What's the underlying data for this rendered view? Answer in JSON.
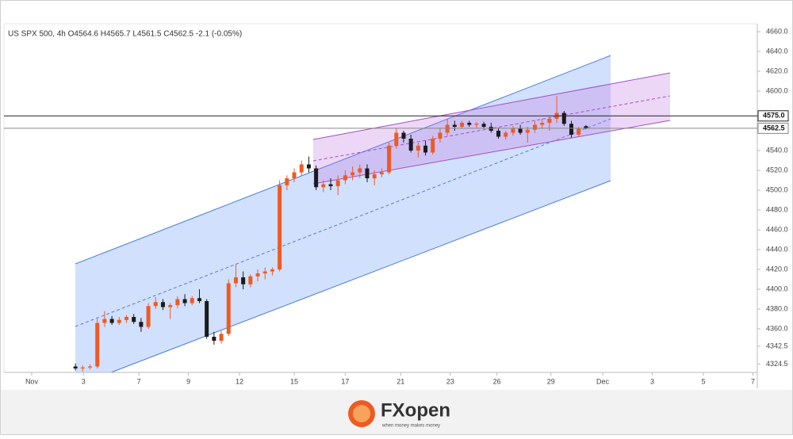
{
  "chart_data": {
    "type": "candlestick",
    "title": "US SPX 500, 4h  O4564.6  H4565.7  L4561.5  C4562.5  -2.1 (-0.05%)",
    "up_color": "#ef5a23",
    "down_color": "#1a1a1a",
    "x": [
      0,
      1,
      2,
      3,
      4,
      5,
      6,
      7,
      8,
      9,
      10,
      11,
      12,
      13,
      14,
      15,
      16,
      17,
      18,
      19,
      20,
      21,
      22,
      23,
      24,
      25,
      26,
      27,
      28,
      29,
      30,
      31,
      32,
      33,
      34,
      35,
      36,
      37,
      38,
      39,
      40,
      41,
      42,
      43,
      44,
      45,
      46,
      47,
      48,
      49,
      50,
      51,
      52,
      53,
      54,
      55,
      56,
      57,
      58,
      59,
      60,
      61,
      62,
      63,
      64,
      65,
      66,
      67,
      68,
      69,
      70
    ],
    "open": [
      4322,
      4320,
      4321,
      4322,
      4366,
      4370,
      4366,
      4369,
      4372,
      4367,
      4362,
      4383,
      4387,
      4382,
      4384,
      4390,
      4386,
      4391,
      4388,
      4352,
      4348,
      4355,
      4406,
      4412,
      4405,
      4413,
      4416,
      4418,
      4420,
      4505,
      4512,
      4518,
      4526,
      4522,
      4503,
      4506,
      4504,
      4510,
      4515,
      4518,
      4522,
      4512,
      4516,
      4518,
      4545,
      4558,
      4552,
      4540,
      4545,
      4538,
      4552,
      4558,
      4566,
      4564,
      4568,
      4566,
      4567,
      4564,
      4560,
      4554,
      4558,
      4562,
      4558,
      4561,
      4566,
      4568,
      4572,
      4578,
      4567,
      4556,
      4564.6
    ],
    "high": [
      4325,
      4323,
      4324,
      4370,
      4378,
      4373,
      4372,
      4374,
      4375,
      4371,
      4386,
      4392,
      4390,
      4386,
      4393,
      4395,
      4393,
      4400,
      4390,
      4357,
      4358,
      4410,
      4425,
      4418,
      4415,
      4420,
      4422,
      4422,
      4510,
      4515,
      4522,
      4530,
      4534,
      4525,
      4510,
      4512,
      4515,
      4520,
      4524,
      4526,
      4526,
      4520,
      4522,
      4548,
      4562,
      4560,
      4556,
      4548,
      4550,
      4555,
      4562,
      4572,
      4570,
      4570,
      4570,
      4569,
      4569,
      4568,
      4563,
      4560,
      4565,
      4566,
      4564,
      4570,
      4572,
      4574,
      4595,
      4580,
      4570,
      4564,
      4565.7
    ],
    "low": [
      4318,
      4317,
      4319,
      4320,
      4362,
      4364,
      4364,
      4366,
      4365,
      4357,
      4360,
      4380,
      4379,
      4370,
      4381,
      4383,
      4384,
      4386,
      4350,
      4344,
      4345,
      4353,
      4402,
      4400,
      4402,
      4408,
      4410,
      4414,
      4418,
      4500,
      4508,
      4514,
      4518,
      4500,
      4498,
      4500,
      4495,
      4506,
      4510,
      4512,
      4508,
      4505,
      4513,
      4516,
      4542,
      4548,
      4538,
      4533,
      4535,
      4536,
      4548,
      4555,
      4560,
      4562,
      4564,
      4563,
      4562,
      4558,
      4552,
      4551,
      4555,
      4556,
      4548,
      4558,
      4562,
      4560,
      4568,
      4565,
      4553,
      4554,
      4561.5
    ],
    "close": [
      4320,
      4321,
      4322,
      4366,
      4370,
      4366,
      4369,
      4372,
      4367,
      4362,
      4383,
      4387,
      4382,
      4384,
      4390,
      4386,
      4391,
      4388,
      4352,
      4348,
      4355,
      4406,
      4412,
      4405,
      4413,
      4416,
      4418,
      4420,
      4505,
      4512,
      4518,
      4526,
      4522,
      4503,
      4506,
      4504,
      4510,
      4515,
      4518,
      4522,
      4512,
      4516,
      4518,
      4545,
      4558,
      4552,
      4540,
      4545,
      4538,
      4552,
      4558,
      4566,
      4564,
      4568,
      4566,
      4567,
      4564,
      4560,
      4554,
      4558,
      4562,
      4558,
      4561,
      4566,
      4568,
      4572,
      4578,
      4567,
      4556,
      4562,
      4562.5
    ],
    "xlim": [
      -9.8,
      93.5
    ],
    "xticks": [
      {
        "value": -6,
        "label": "Nov"
      },
      {
        "value": 1.1,
        "label": "3"
      },
      {
        "value": 8.7,
        "label": "7"
      },
      {
        "value": 15.5,
        "label": "9"
      },
      {
        "value": 22.5,
        "label": "12"
      },
      {
        "value": 30,
        "label": "15"
      },
      {
        "value": 37,
        "label": "17"
      },
      {
        "value": 44.6,
        "label": "21"
      },
      {
        "value": 51.4,
        "label": "23"
      },
      {
        "value": 57.8,
        "label": "26"
      },
      {
        "value": 65.2,
        "label": "29"
      },
      {
        "value": 72.3,
        "label": "Dec"
      },
      {
        "value": 79.1,
        "label": "3"
      },
      {
        "value": 86.1,
        "label": "5"
      },
      {
        "value": 92.9,
        "label": "7"
      }
    ],
    "ylim": [
      4316,
      4668
    ],
    "yticks": [
      {
        "value": 4660,
        "label": "4660.0"
      },
      {
        "value": 4640,
        "label": "4640.0"
      },
      {
        "value": 4620,
        "label": "4620.0"
      },
      {
        "value": 4600,
        "label": "4600.0"
      },
      {
        "value": 4540,
        "label": "4540.0"
      },
      {
        "value": 4520,
        "label": "4520.0"
      },
      {
        "value": 4500,
        "label": "4500.0"
      },
      {
        "value": 4480,
        "label": "4480.0"
      },
      {
        "value": 4460,
        "label": "4460.0"
      },
      {
        "value": 4440,
        "label": "4440.0"
      },
      {
        "value": 4420,
        "label": "4420.0"
      },
      {
        "value": 4400,
        "label": "4400.0"
      },
      {
        "value": 4380,
        "label": "4380.0"
      },
      {
        "value": 4360,
        "label": "4360.0"
      },
      4342.5,
      4324.5
    ],
    "price_lines": [
      {
        "value": 4575,
        "label": "4575.0",
        "color": "#222222"
      },
      {
        "value": 4562.5,
        "label": "4562.5",
        "color": "#888888"
      }
    ],
    "grid": false
  },
  "footer": {
    "brand": "FXopen",
    "tagline": "when money makes money"
  }
}
